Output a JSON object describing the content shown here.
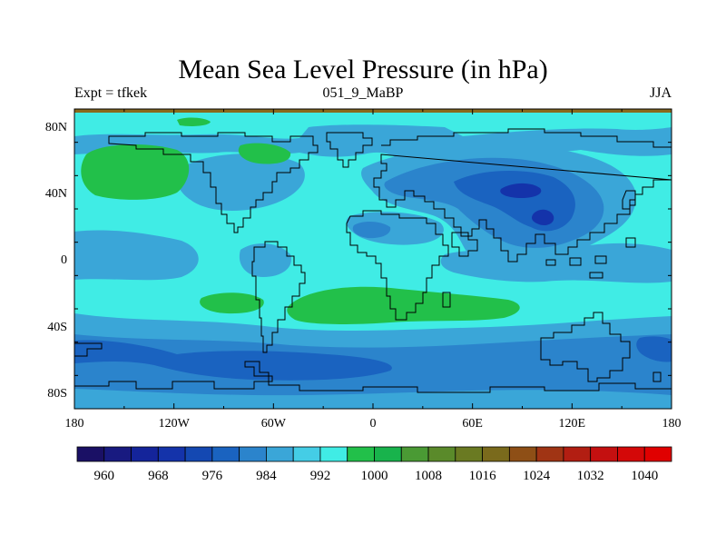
{
  "title": "Mean Sea Level Pressure (in hPa)",
  "subtitle_left": "Expt = tfkek",
  "subtitle_center": "051_9_MaBP",
  "subtitle_right": "JJA",
  "x_ticks": [
    "180",
    "120W",
    "60W",
    "0",
    "60E",
    "120E",
    "180"
  ],
  "y_ticks": [
    "80N",
    "40N",
    "0",
    "40S",
    "80S"
  ],
  "colorbar": {
    "labels": [
      "960",
      "968",
      "976",
      "984",
      "992",
      "1000",
      "1008",
      "1016",
      "1024",
      "1032",
      "1040"
    ],
    "colors": [
      "#1a1065",
      "#181a80",
      "#14249a",
      "#1433aa",
      "#1448b2",
      "#1a63c0",
      "#2b84cc",
      "#3aa6d8",
      "#44cde6",
      "#40ece5",
      "#22c04a",
      "#18b34c",
      "#4a9a34",
      "#5a8a2a",
      "#6a7a22",
      "#7a6a1c",
      "#8e4f16",
      "#a03414",
      "#b21e12",
      "#c41010",
      "#d40808",
      "#e00000"
    ]
  },
  "colors": {
    "bg_field": "#40ece5",
    "low1": "#3aa6d8",
    "low2": "#2b84cc",
    "low3": "#1a63c0",
    "low4": "#1433aa",
    "high1": "#22c04a",
    "coast": "#000000",
    "top_band": "#8a6a1c"
  }
}
